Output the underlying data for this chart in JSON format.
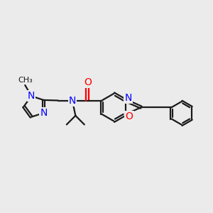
{
  "bg_color": "#ebebeb",
  "bond_color": "#1a1a1a",
  "N_color": "#0000ff",
  "O_color": "#ff0000",
  "bond_width": 1.6,
  "font_size": 10,
  "fig_size": [
    3.0,
    3.0
  ],
  "dpi": 100,
  "xlim": [
    0,
    10
  ],
  "ylim": [
    1,
    8
  ]
}
